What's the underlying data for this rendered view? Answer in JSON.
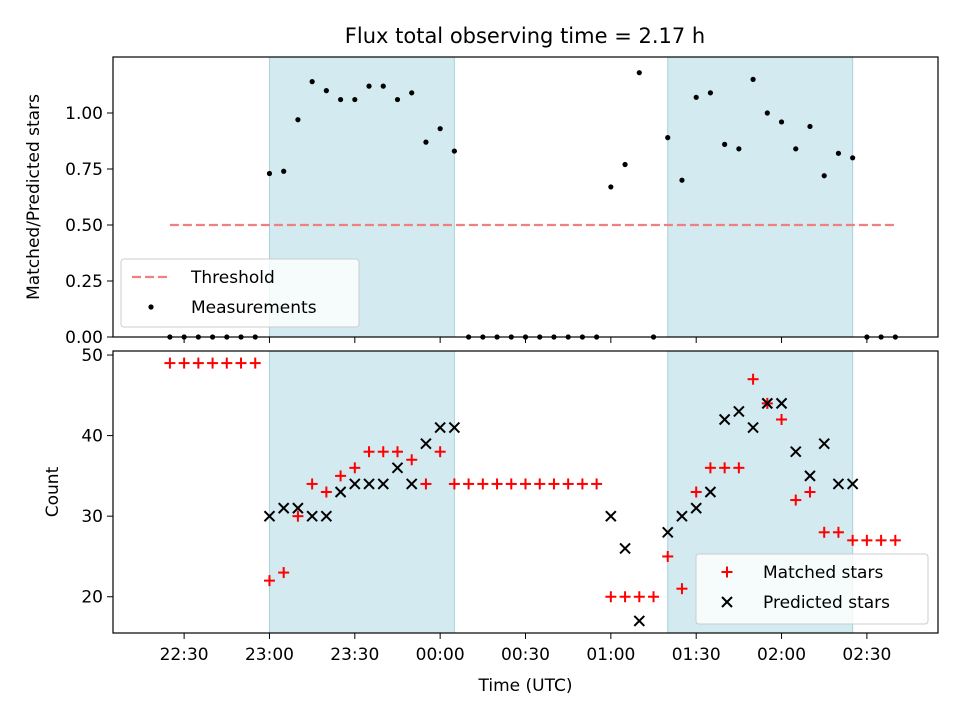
{
  "chart_data": [
    {
      "type": "scatter",
      "title": "Flux total observing time = 2.17 h",
      "xlabel": "Time (UTC)",
      "ylabel": "Matched/Predicted stars",
      "xlim": [
        "22:05",
        "02:55"
      ],
      "ylim": [
        0,
        1.25
      ],
      "ytick_labels": [
        "0.00",
        "0.25",
        "0.50",
        "0.75",
        "1.00"
      ],
      "legend_position": "lower-left",
      "threshold": {
        "name": "Threshold",
        "y": 0.5,
        "x_start": "22:25",
        "x_end": "02:40",
        "color": "#f08080",
        "style": "dashed"
      },
      "shaded_intervals": [
        [
          "23:00",
          "00:05"
        ],
        [
          "01:20",
          "02:25"
        ]
      ],
      "shade_color": "#d3eaf0",
      "series": [
        {
          "name": "Measurements",
          "color": "#000000",
          "points": [
            [
              "22:25",
              0
            ],
            [
              "22:30",
              0
            ],
            [
              "22:35",
              0
            ],
            [
              "22:40",
              0
            ],
            [
              "22:45",
              0
            ],
            [
              "22:50",
              0
            ],
            [
              "22:55",
              0
            ],
            [
              "23:00",
              0.73
            ],
            [
              "23:05",
              0.74
            ],
            [
              "23:10",
              0.97
            ],
            [
              "23:15",
              1.14
            ],
            [
              "23:20",
              1.1
            ],
            [
              "23:25",
              1.06
            ],
            [
              "23:30",
              1.06
            ],
            [
              "23:35",
              1.12
            ],
            [
              "23:40",
              1.12
            ],
            [
              "23:45",
              1.06
            ],
            [
              "23:50",
              1.09
            ],
            [
              "23:55",
              0.87
            ],
            [
              "00:00",
              0.93
            ],
            [
              "00:05",
              0.83
            ],
            [
              "00:10",
              0
            ],
            [
              "00:15",
              0
            ],
            [
              "00:20",
              0
            ],
            [
              "00:25",
              0
            ],
            [
              "00:30",
              0
            ],
            [
              "00:35",
              0
            ],
            [
              "00:40",
              0
            ],
            [
              "00:45",
              0
            ],
            [
              "00:50",
              0
            ],
            [
              "00:55",
              0
            ],
            [
              "01:00",
              0.67
            ],
            [
              "01:05",
              0.77
            ],
            [
              "01:10",
              1.18
            ],
            [
              "01:15",
              0
            ],
            [
              "01:20",
              0.89
            ],
            [
              "01:25",
              0.7
            ],
            [
              "01:30",
              1.07
            ],
            [
              "01:35",
              1.09
            ],
            [
              "01:40",
              0.86
            ],
            [
              "01:45",
              0.84
            ],
            [
              "01:50",
              1.15
            ],
            [
              "01:55",
              1.0
            ],
            [
              "02:00",
              0.96
            ],
            [
              "02:05",
              0.84
            ],
            [
              "02:10",
              0.94
            ],
            [
              "02:15",
              0.72
            ],
            [
              "02:20",
              0.82
            ],
            [
              "02:25",
              0.8
            ],
            [
              "02:30",
              0
            ],
            [
              "02:35",
              0
            ],
            [
              "02:40",
              0
            ]
          ]
        }
      ]
    },
    {
      "type": "scatter",
      "xlabel": "Time (UTC)",
      "ylabel": "Count",
      "xlim": [
        "22:05",
        "02:55"
      ],
      "ylim": [
        15.5,
        50.5
      ],
      "ytick_labels": [
        "20",
        "30",
        "40",
        "50"
      ],
      "xtick_labels": [
        "22:30",
        "23:00",
        "23:30",
        "00:00",
        "00:30",
        "01:00",
        "01:30",
        "02:00",
        "02:30"
      ],
      "legend_position": "lower-right",
      "shaded_intervals": [
        [
          "23:00",
          "00:05"
        ],
        [
          "01:20",
          "02:25"
        ]
      ],
      "shade_color": "#d3eaf0",
      "series": [
        {
          "name": "Matched stars",
          "marker": "+",
          "color": "#ff0000",
          "points": [
            [
              "22:25",
              49
            ],
            [
              "22:30",
              49
            ],
            [
              "22:35",
              49
            ],
            [
              "22:40",
              49
            ],
            [
              "22:45",
              49
            ],
            [
              "22:50",
              49
            ],
            [
              "22:55",
              49
            ],
            [
              "23:00",
              22
            ],
            [
              "23:05",
              23
            ],
            [
              "23:10",
              30
            ],
            [
              "23:15",
              34
            ],
            [
              "23:20",
              33
            ],
            [
              "23:25",
              35
            ],
            [
              "23:30",
              36
            ],
            [
              "23:35",
              38
            ],
            [
              "23:40",
              38
            ],
            [
              "23:45",
              38
            ],
            [
              "23:50",
              37
            ],
            [
              "23:55",
              34
            ],
            [
              "00:00",
              38
            ],
            [
              "00:05",
              34
            ],
            [
              "00:10",
              34
            ],
            [
              "00:15",
              34
            ],
            [
              "00:20",
              34
            ],
            [
              "00:25",
              34
            ],
            [
              "00:30",
              34
            ],
            [
              "00:35",
              34
            ],
            [
              "00:40",
              34
            ],
            [
              "00:45",
              34
            ],
            [
              "00:50",
              34
            ],
            [
              "00:55",
              34
            ],
            [
              "01:00",
              20
            ],
            [
              "01:05",
              20
            ],
            [
              "01:10",
              20
            ],
            [
              "01:15",
              20
            ],
            [
              "01:20",
              25
            ],
            [
              "01:25",
              21
            ],
            [
              "01:30",
              33
            ],
            [
              "01:35",
              36
            ],
            [
              "01:40",
              36
            ],
            [
              "01:45",
              36
            ],
            [
              "01:50",
              47
            ],
            [
              "01:55",
              44
            ],
            [
              "02:00",
              42
            ],
            [
              "02:05",
              32
            ],
            [
              "02:10",
              33
            ],
            [
              "02:15",
              28
            ],
            [
              "02:20",
              28
            ],
            [
              "02:25",
              27
            ],
            [
              "02:30",
              27
            ],
            [
              "02:35",
              27
            ],
            [
              "02:40",
              27
            ]
          ]
        },
        {
          "name": "Predicted stars",
          "marker": "x",
          "color": "#000000",
          "points": [
            [
              "23:00",
              30
            ],
            [
              "23:05",
              31
            ],
            [
              "23:10",
              31
            ],
            [
              "23:15",
              30
            ],
            [
              "23:20",
              30
            ],
            [
              "23:25",
              33
            ],
            [
              "23:30",
              34
            ],
            [
              "23:35",
              34
            ],
            [
              "23:40",
              34
            ],
            [
              "23:45",
              36
            ],
            [
              "23:50",
              34
            ],
            [
              "23:55",
              39
            ],
            [
              "00:00",
              41
            ],
            [
              "00:05",
              41
            ],
            [
              "01:00",
              30
            ],
            [
              "01:05",
              26
            ],
            [
              "01:10",
              17
            ],
            [
              "01:20",
              28
            ],
            [
              "01:25",
              30
            ],
            [
              "01:30",
              31
            ],
            [
              "01:35",
              33
            ],
            [
              "01:40",
              42
            ],
            [
              "01:45",
              43
            ],
            [
              "01:50",
              41
            ],
            [
              "01:55",
              44
            ],
            [
              "02:00",
              44
            ],
            [
              "02:05",
              38
            ],
            [
              "02:10",
              35
            ],
            [
              "02:15",
              39
            ],
            [
              "02:20",
              34
            ],
            [
              "02:25",
              34
            ]
          ]
        }
      ]
    }
  ]
}
